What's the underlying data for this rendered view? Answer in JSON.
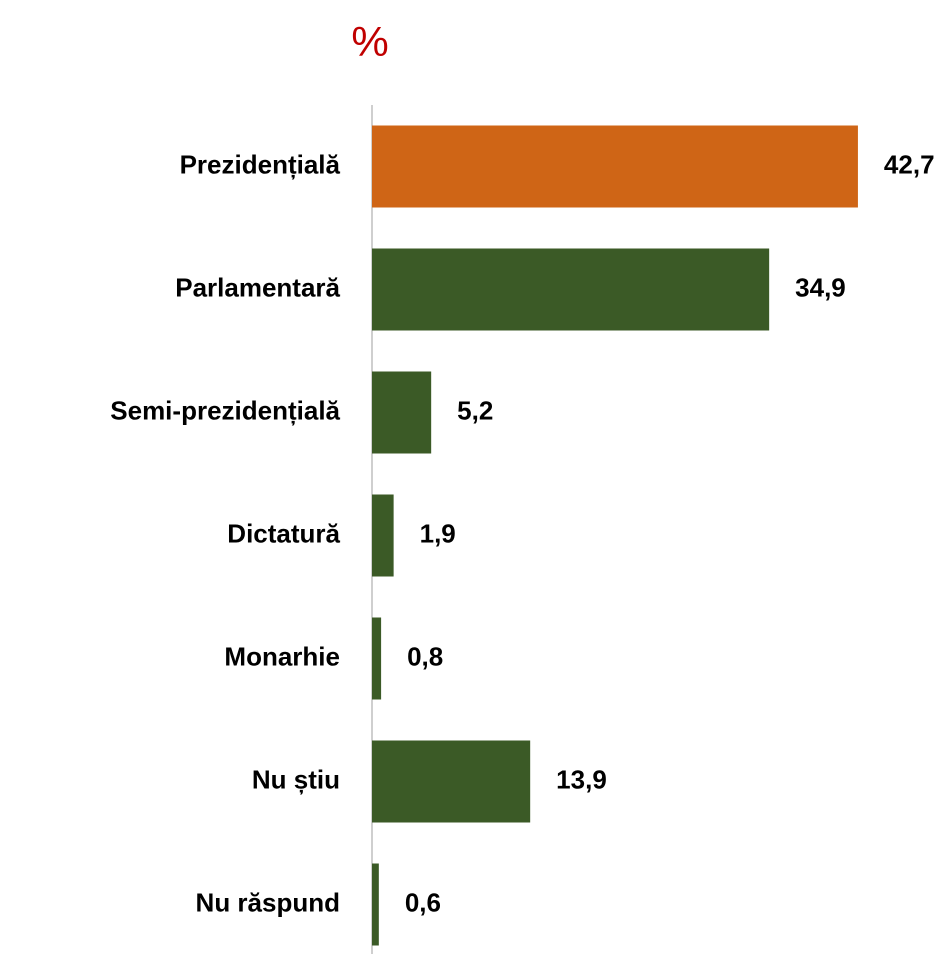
{
  "chart_data": {
    "type": "barh",
    "title": "%",
    "categories": [
      "Prezidențială",
      "Parlamentară",
      "Semi-prezidențială",
      "Dictatură",
      "Monarhie",
      "Nu știu",
      "Nu răspund"
    ],
    "values": [
      42.7,
      34.9,
      5.2,
      1.9,
      0.8,
      13.9,
      0.6
    ],
    "value_labels": [
      "42,7",
      "34,9",
      "5,2",
      "1,9",
      "0,8",
      "13,9",
      "0,6"
    ],
    "colors": [
      "#cf6516",
      "#3b5a26",
      "#3b5a26",
      "#3b5a26",
      "#3b5a26",
      "#3b5a26",
      "#3b5a26"
    ],
    "xlim": [
      0,
      50
    ]
  }
}
